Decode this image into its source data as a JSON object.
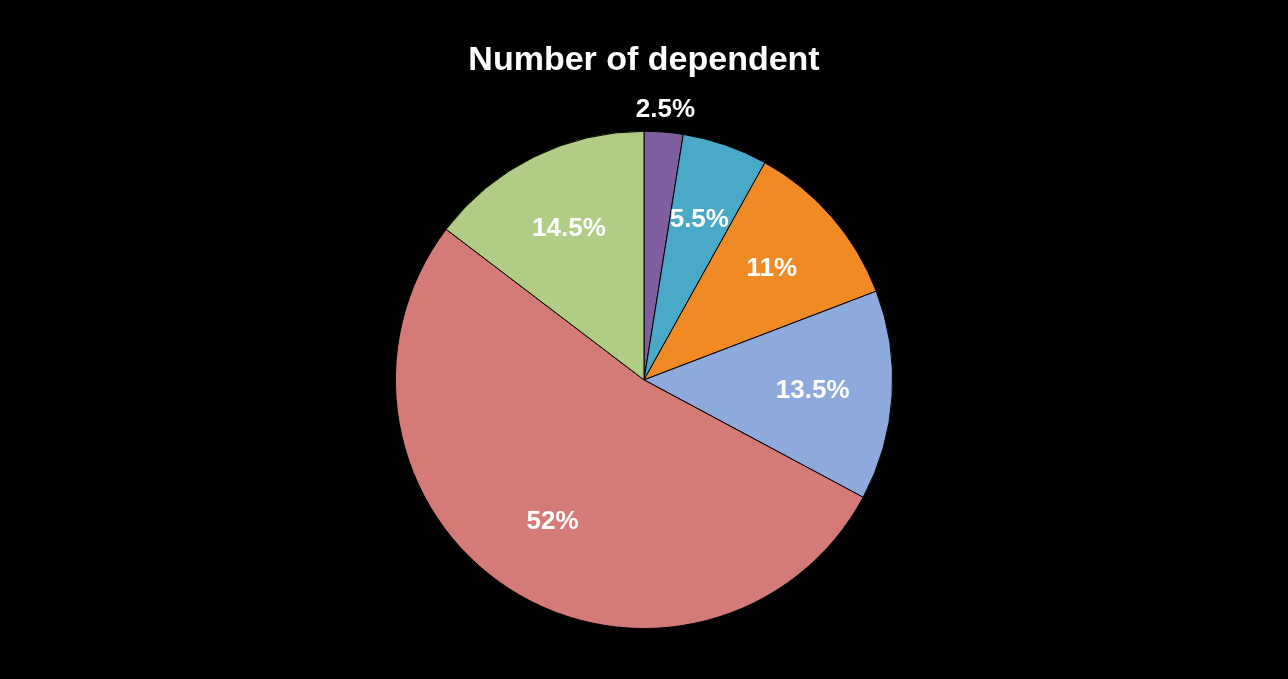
{
  "chart_data": {
    "type": "pie",
    "title": "Number of dependent",
    "categories": [
      null,
      null,
      null,
      null,
      null,
      null
    ],
    "values": [
      2.5,
      5.5,
      11,
      13.5,
      52,
      14.5
    ],
    "colors": [
      "#7f5fa0",
      "#4aa9c6",
      "#f08a24",
      "#8ea9db",
      "#d47b78",
      "#b0cc85"
    ],
    "value_labels": [
      "2.5%",
      "5.5%",
      "11%",
      "13.5%",
      "52%",
      "14.5%"
    ],
    "legend": false
  }
}
